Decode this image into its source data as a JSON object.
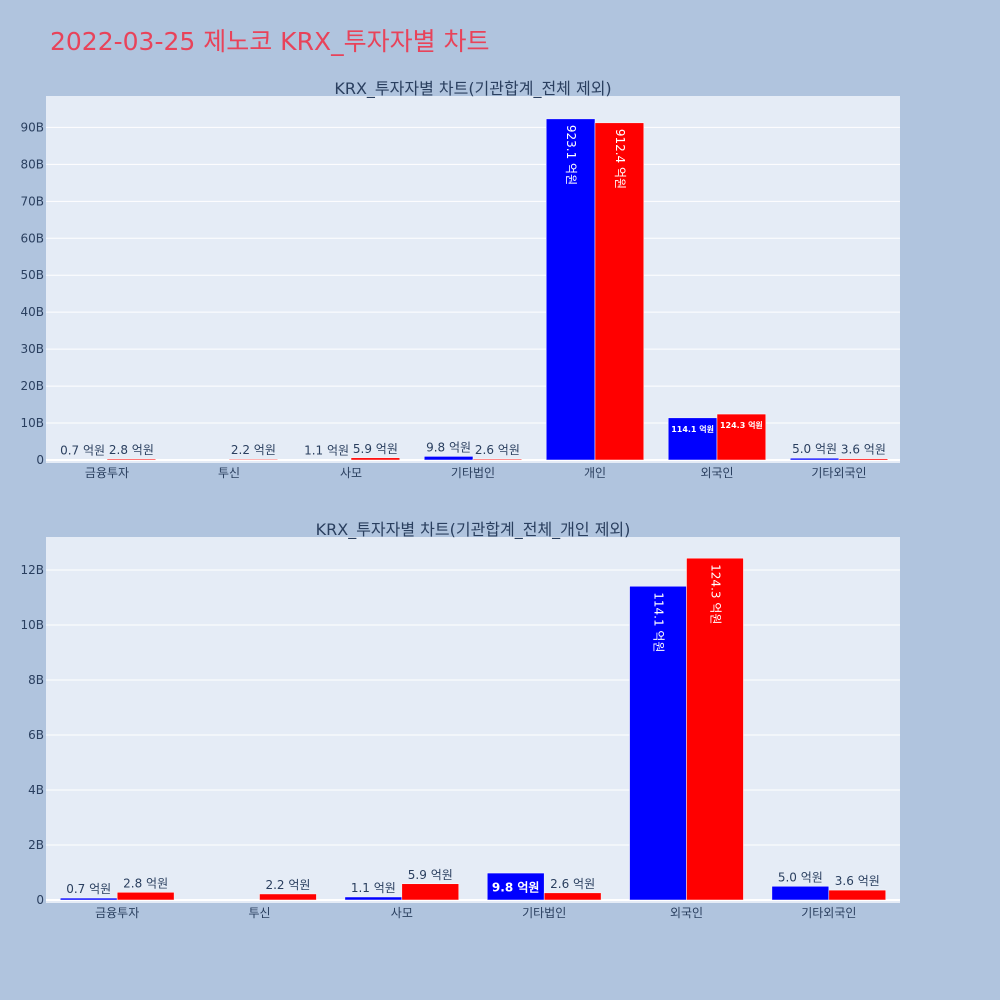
{
  "title": "2022-03-25 제노코 KRX_투자자별 차트",
  "chart_data": [
    {
      "type": "bar",
      "title": "KRX_투자자별 차트(기관합계_전체 제외)",
      "categories": [
        "금융투자",
        "투신",
        "사모",
        "기타법인",
        "개인",
        "외국인",
        "기타외국인"
      ],
      "series": [
        {
          "color": "#0000ff",
          "values": [
            70000000,
            0,
            110000000,
            980000000,
            92310000000,
            11410000000,
            500000000
          ],
          "labels": [
            "0.7 억원",
            "",
            "1.1 억원",
            "9.8 억원",
            "923.1 억원",
            "114.1 억원",
            "5.0 억원"
          ]
        },
        {
          "color": "#ff0000",
          "values": [
            280000000,
            220000000,
            590000000,
            260000000,
            91240000000,
            12430000000,
            360000000
          ],
          "labels": [
            "2.8 억원",
            "2.2 억원",
            "5.9 억원",
            "2.6 억원",
            "912.4 억원",
            "124.3 억원",
            "3.6 억원"
          ]
        }
      ],
      "ylim": [
        0,
        98500000000
      ],
      "yticks": [
        0,
        10000000000,
        20000000000,
        30000000000,
        40000000000,
        50000000000,
        60000000000,
        70000000000,
        80000000000,
        90000000000
      ],
      "yticklabels": [
        "0",
        "10B",
        "20B",
        "30B",
        "40B",
        "50B",
        "60B",
        "70B",
        "80B",
        "90B"
      ],
      "grid": true
    },
    {
      "type": "bar",
      "title": "KRX_투자자별 차트(기관합계_전체_개인 제외)",
      "categories": [
        "금융투자",
        "투신",
        "사모",
        "기타법인",
        "외국인",
        "기타외국인"
      ],
      "series": [
        {
          "color": "#0000ff",
          "values": [
            70000000,
            0,
            110000000,
            980000000,
            11410000000,
            500000000
          ],
          "labels": [
            "0.7 억원",
            "",
            "1.1 억원",
            "9.8 억원",
            "114.1 억원",
            "5.0 억원"
          ]
        },
        {
          "color": "#ff0000",
          "values": [
            280000000,
            220000000,
            590000000,
            260000000,
            12430000000,
            360000000
          ],
          "labels": [
            "2.8 억원",
            "2.2 억원",
            "5.9 억원",
            "2.6 억원",
            "124.3 억원",
            "3.6 억원"
          ]
        }
      ],
      "ylim": [
        0,
        13200000000
      ],
      "yticks": [
        0,
        2000000000,
        4000000000,
        6000000000,
        8000000000,
        10000000000,
        12000000000
      ],
      "yticklabels": [
        "0",
        "2B",
        "4B",
        "6B",
        "8B",
        "10B",
        "12B"
      ],
      "grid": true
    }
  ]
}
